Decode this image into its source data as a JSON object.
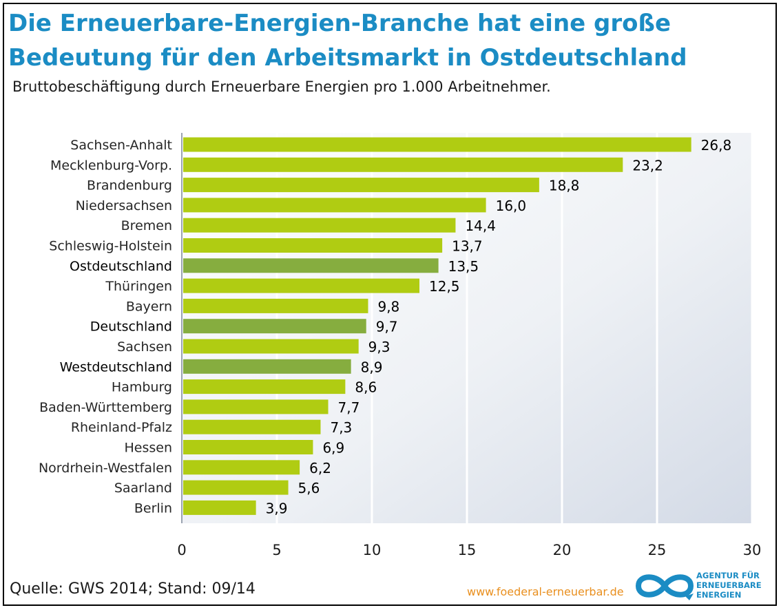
{
  "title_line1": "Die Erneuerbare-Energien-Branche hat eine große",
  "title_line2": "Bedeutung für den Arbeitsmarkt in Ostdeutschland",
  "subtitle": "Bruttobeschäftigung durch Erneuerbare Energien pro 1.000 Arbeitnehmer.",
  "source": "Quelle: GWS 2014; Stand: 09/14",
  "website": "www.foederal-erneuerbar.de",
  "logo_text": [
    "AGENTUR FÜR",
    "ERNEUERBARE",
    "ENERGIEN"
  ],
  "colors": {
    "title": "#1b8cc4",
    "bar_regular": "#b0cc12",
    "bar_highlight": "#86ad3f",
    "website": "#e98f1e",
    "logo": "#1b8cc4"
  },
  "chart_data": {
    "type": "bar",
    "orientation": "horizontal",
    "categories": [
      "Sachsen-Anhalt",
      "Mecklenburg-Vorp.",
      "Brandenburg",
      "Niedersachsen",
      "Bremen",
      "Schleswig-Holstein",
      "Ostdeutschland",
      "Thüringen",
      "Bayern",
      "Deutschland",
      "Sachsen",
      "Westdeutschland",
      "Hamburg",
      "Baden-Württemberg",
      "Rheinland-Pfalz",
      "Hessen",
      "Nordrhein-Westfalen",
      "Saarland",
      "Berlin"
    ],
    "values": [
      26.8,
      23.2,
      18.8,
      16.0,
      14.4,
      13.7,
      13.5,
      12.5,
      9.8,
      9.7,
      9.3,
      8.9,
      8.6,
      7.7,
      7.3,
      6.9,
      6.2,
      5.6,
      3.9
    ],
    "value_labels": [
      "26,8",
      "23,2",
      "18,8",
      "16,0",
      "14,4",
      "13,7",
      "13,5",
      "12,5",
      "9,8",
      "9,7",
      "9,3",
      "8,9",
      "8,6",
      "7,7",
      "7,3",
      "6,9",
      "6,2",
      "5,6",
      "3,9"
    ],
    "highlighted": [
      "Ostdeutschland",
      "Deutschland",
      "Westdeutschland"
    ],
    "xlim": [
      0,
      30
    ],
    "xticks": [
      0,
      5,
      10,
      15,
      20,
      25,
      30
    ],
    "xtick_labels": [
      "0",
      "5",
      "10",
      "15",
      "20",
      "25",
      "30"
    ],
    "grid": true
  }
}
